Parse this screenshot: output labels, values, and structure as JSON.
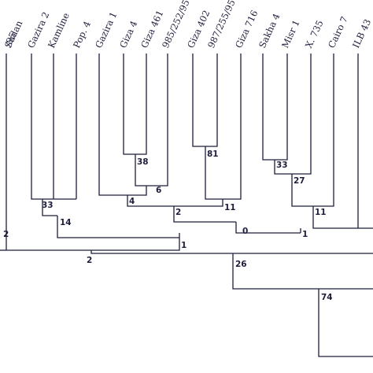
{
  "diagram": {
    "type": "dendrogram",
    "colors": {
      "line": "#1e1e3c",
      "text": "#1e1e3c",
      "background": "#ffffff"
    },
    "tips": [
      {
        "id": "t0",
        "label": "/95"
      },
      {
        "id": "t1",
        "label": "Sudan"
      },
      {
        "id": "t2",
        "label": "Gazira 2"
      },
      {
        "id": "t3",
        "label": "Kamline"
      },
      {
        "id": "t4",
        "label": "Pop. 4"
      },
      {
        "id": "t5",
        "label": "Gazira 1"
      },
      {
        "id": "t6",
        "label": "Giza 4"
      },
      {
        "id": "t7",
        "label": "Giza 461"
      },
      {
        "id": "t8",
        "label": "985/252/95"
      },
      {
        "id": "t9",
        "label": "Giza 402"
      },
      {
        "id": "t10",
        "label": "987/255/95"
      },
      {
        "id": "t11",
        "label": "Giza 716"
      },
      {
        "id": "t12",
        "label": "Sakha 4"
      },
      {
        "id": "t13",
        "label": "Misr 1"
      },
      {
        "id": "t14",
        "label": "X. 735"
      },
      {
        "id": "t15",
        "label": "Cairo 7"
      },
      {
        "id": "t16",
        "label": "ILB 43"
      }
    ],
    "nodes": [
      {
        "id": "n_kam_pop",
        "label": "33"
      },
      {
        "id": "n_gaz2_grp",
        "label": "14"
      },
      {
        "id": "n_g4_g461",
        "label": "38"
      },
      {
        "id": "n_n38_985",
        "label": "6"
      },
      {
        "id": "n_gaz1_grp",
        "label": "4"
      },
      {
        "id": "n_g402_987",
        "label": "81"
      },
      {
        "id": "n_n81_g716",
        "label": "11"
      },
      {
        "id": "n_mid",
        "label": "2"
      },
      {
        "id": "n_sak_misr",
        "label": "33"
      },
      {
        "id": "n_n33_x735",
        "label": "27"
      },
      {
        "id": "n_n27_cairo",
        "label": "11"
      },
      {
        "id": "n_right",
        "label": "0"
      },
      {
        "id": "n_big",
        "label": "1"
      },
      {
        "id": "n_left",
        "label": "2"
      },
      {
        "id": "n_root_a",
        "label": "1"
      },
      {
        "id": "n_root_b",
        "label": "2"
      },
      {
        "id": "n_lower",
        "label": "26"
      },
      {
        "id": "n_lowest",
        "label": "74"
      }
    ]
  }
}
